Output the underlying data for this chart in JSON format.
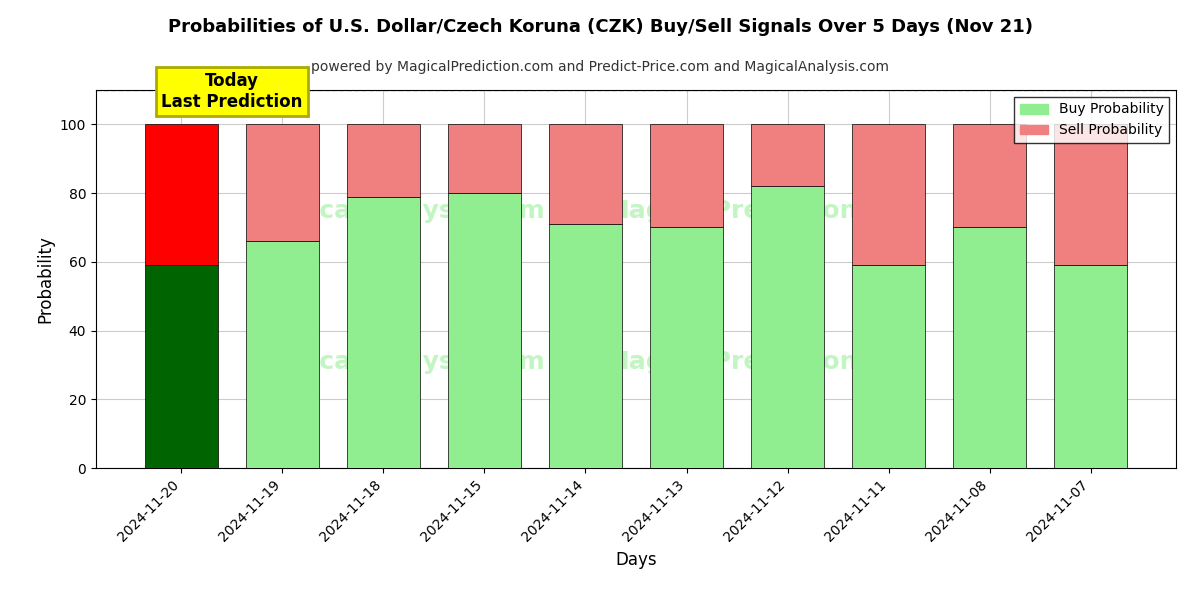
{
  "title": "Probabilities of U.S. Dollar/Czech Koruna (CZK) Buy/Sell Signals Over 5 Days (Nov 21)",
  "subtitle": "powered by MagicalPrediction.com and Predict-Price.com and MagicalAnalysis.com",
  "xlabel": "Days",
  "ylabel": "Probability",
  "categories": [
    "2024-11-20",
    "2024-11-19",
    "2024-11-18",
    "2024-11-15",
    "2024-11-14",
    "2024-11-13",
    "2024-11-12",
    "2024-11-11",
    "2024-11-08",
    "2024-11-07"
  ],
  "buy_values": [
    59,
    66,
    79,
    80,
    71,
    70,
    82,
    59,
    70,
    59
  ],
  "sell_values": [
    41,
    34,
    21,
    20,
    29,
    30,
    18,
    41,
    30,
    41
  ],
  "today_bar_buy_color": "#006400",
  "today_bar_sell_color": "#FF0000",
  "normal_bar_buy_color": "#90EE90",
  "normal_bar_sell_color": "#F08080",
  "today_annotation_text": "Today\nLast Prediction",
  "today_annotation_bg": "#FFFF00",
  "legend_buy_label": "Buy Probability",
  "legend_sell_label": "Sell Probability",
  "ylim": [
    0,
    110
  ],
  "dashed_line_y": 110,
  "watermark_color": "#90EE90",
  "background_color": "#ffffff",
  "grid_color": "#cccccc"
}
